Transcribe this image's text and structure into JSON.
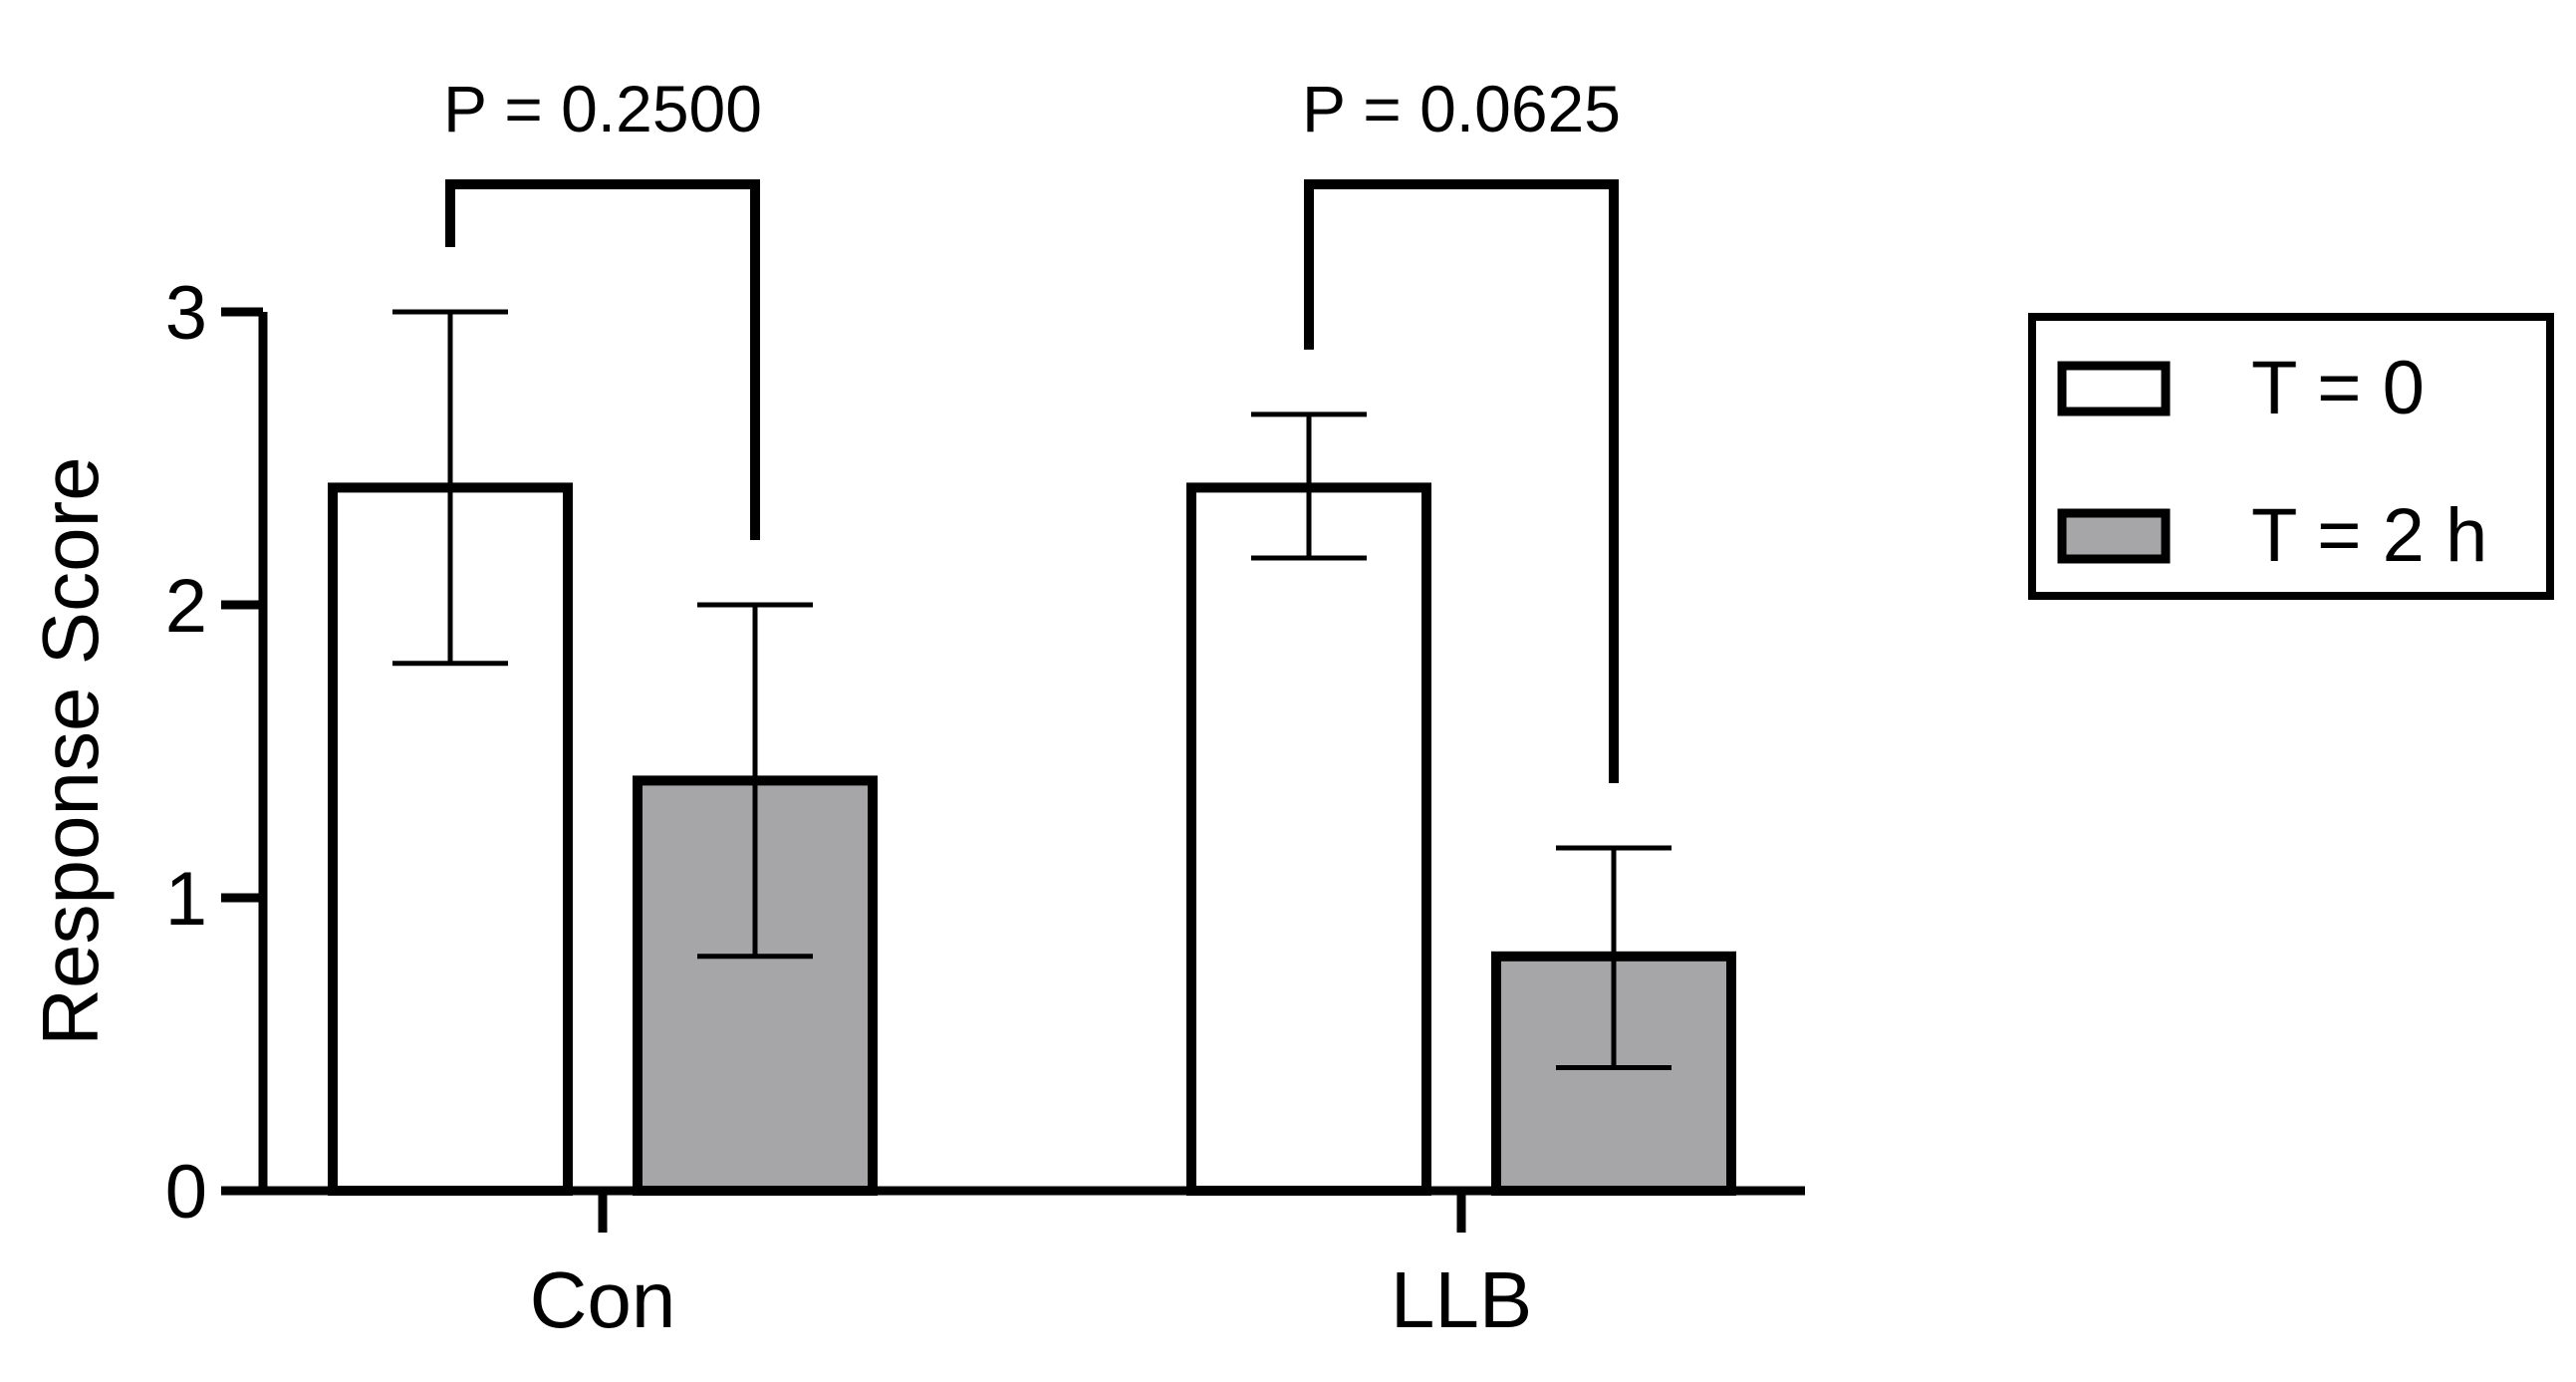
{
  "chart_data": {
    "type": "bar",
    "ylabel": "Response Score",
    "xlabel": "",
    "ylim": [
      0,
      3
    ],
    "yticks": [
      0,
      1,
      2,
      3
    ],
    "grid": false,
    "legend_position": "right",
    "categories": [
      "Con",
      "LLB"
    ],
    "series": [
      {
        "name": "T = 0",
        "color": "#ffffff",
        "values": [
          2.4,
          2.4
        ],
        "error_low": [
          1.8,
          2.16
        ],
        "error_high": [
          3.0,
          2.65
        ]
      },
      {
        "name": "T = 2 h",
        "color": "#a6a6a9",
        "values": [
          1.4,
          0.8
        ],
        "error_low": [
          0.8,
          0.42
        ],
        "error_high": [
          2.0,
          1.17
        ]
      }
    ],
    "annotations": [
      {
        "category": "Con",
        "text": "P = 0.2500"
      },
      {
        "category": "LLB",
        "text": "P = 0.0625"
      }
    ]
  }
}
